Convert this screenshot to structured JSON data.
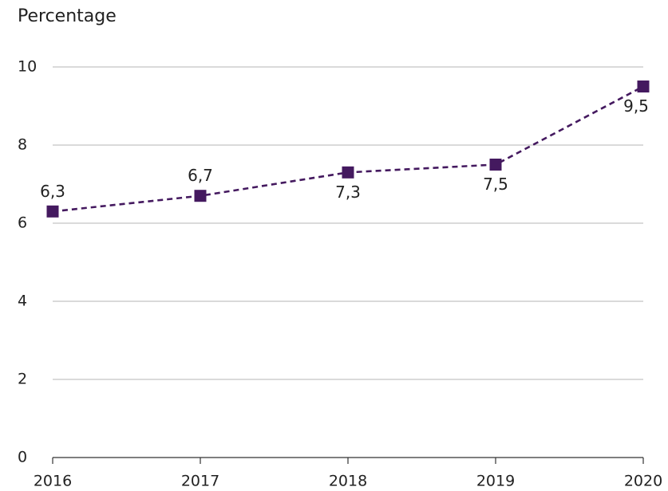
{
  "chart_data": {
    "type": "line",
    "title": "",
    "xlabel": "",
    "ylabel": "Percentage",
    "x": [
      "2016",
      "2017",
      "2018",
      "2019",
      "2020"
    ],
    "series": [
      {
        "values": [
          6.3,
          6.7,
          7.3,
          7.5,
          9.5
        ],
        "labels": [
          "6,3",
          "6,7",
          "7,3",
          "7,5",
          "9,5"
        ],
        "color": "#44195f",
        "line_style": "dashed",
        "marker": "square"
      }
    ],
    "ylim": [
      0,
      10
    ],
    "yticks": [
      0,
      2,
      4,
      6,
      8,
      10
    ],
    "ytick_labels": [
      "0",
      "2",
      "4",
      "6",
      "8",
      "10"
    ],
    "grid": true,
    "legend": false
  }
}
